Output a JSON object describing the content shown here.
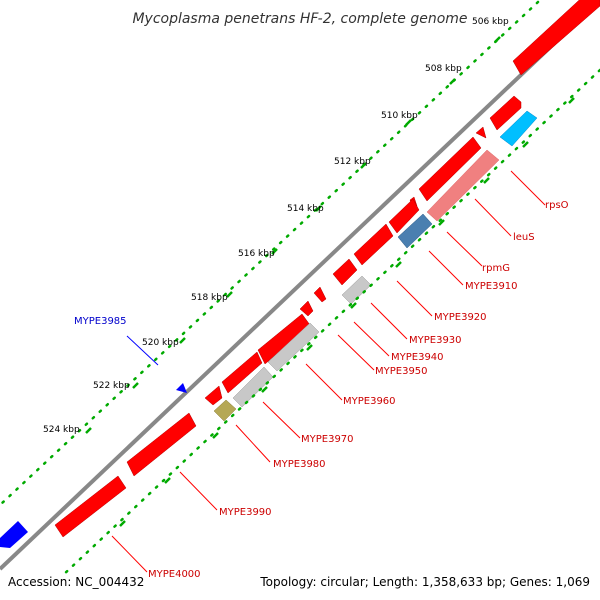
{
  "title": "Mycoplasma penetrans HF-2, complete genome",
  "footer": {
    "accession": "Accession: NC_004432",
    "topology": "Topology: circular; Length: 1,358,633 bp; Genes: 1,069"
  },
  "ticks": [
    "506 kbp",
    "508 kbp",
    "510 kbp",
    "512 kbp",
    "514 kbp",
    "516 kbp",
    "518 kbp",
    "520 kbp",
    "522 kbp",
    "524 kbp"
  ],
  "gene_labels": {
    "rpsO": "rpsO",
    "leuS": "leuS",
    "rpmG": "rpmG",
    "MYPE3910": "MYPE3910",
    "MYPE3920": "MYPE3920",
    "MYPE3930": "MYPE3930",
    "MYPE3940": "MYPE3940",
    "MYPE3950": "MYPE3950",
    "MYPE3960": "MYPE3960",
    "MYPE3970": "MYPE3970",
    "MYPE3980": "MYPE3980",
    "MYPE3990": "MYPE3990",
    "MYPE4000": "MYPE4000",
    "MYPE3985": "MYPE3985"
  },
  "colors": {
    "cds": "#ff0000",
    "rna_light": "#f08080",
    "dark_blue_feature": "#4a7fb0",
    "cyan_feature": "#00bfff",
    "grey_feature": "#c8c8c8",
    "olive_feature": "#b5a855",
    "blue_feature": "#0000ff",
    "backbone": "#888888",
    "tick_dots": "#00aa00"
  }
}
